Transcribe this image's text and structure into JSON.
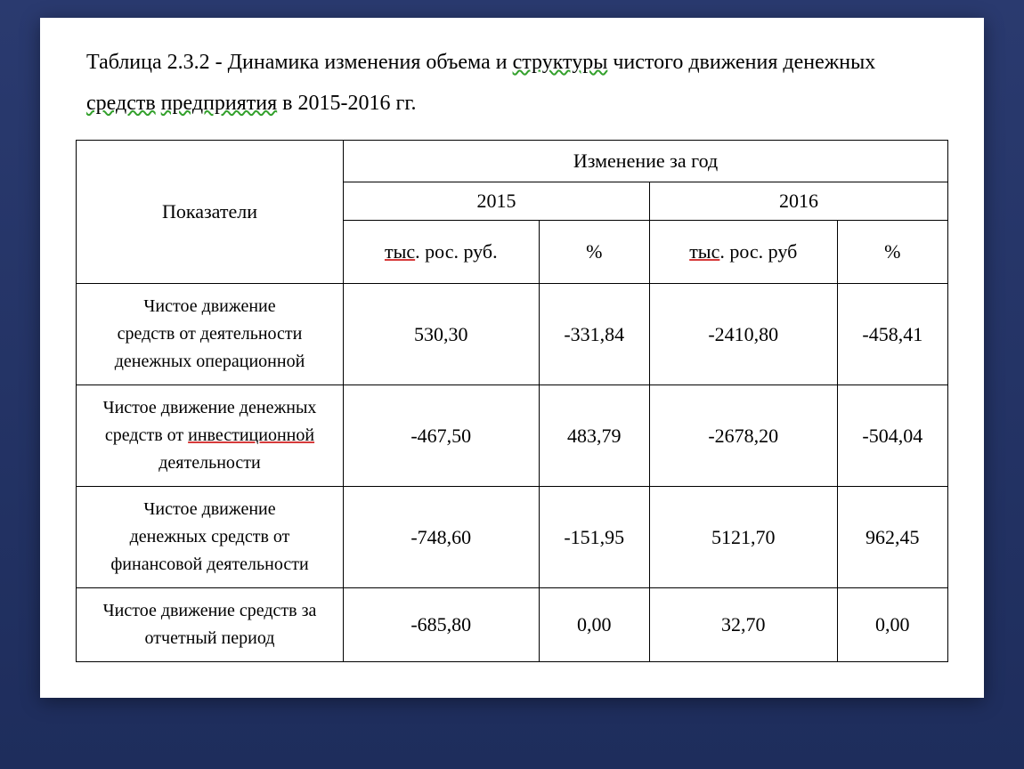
{
  "title": {
    "prefix": "Таблица 2.3.2 - Динамика изменения объема и ",
    "word_struct": "структуры",
    "mid": " чистого движения денежных",
    "word_sredstv": "средств",
    "word_predpr": "предприятия",
    "suffix": " в 2015-2016 гг."
  },
  "table": {
    "headers": {
      "indicators": "Показатели",
      "change_year": "Изменение за год",
      "y2015": "2015",
      "y2016": "2016",
      "unit_rub_2015_pre": "тыс",
      "unit_rub_2015_post": ". рос. руб.",
      "unit_pct": "%",
      "unit_rub_2016_pre": "тыс",
      "unit_rub_2016_post": ". рос. руб"
    },
    "rows": [
      {
        "label_l1": "Чистое движение",
        "label_l2": "средств от деятельности",
        "label_l3": "денежных операционной",
        "v2015_rub": "530,30",
        "v2015_pct": "-331,84",
        "v2016_rub": "-2410,80",
        "v2016_pct": "-458,41"
      },
      {
        "label_l1": "Чистое движение денежных",
        "label_l2_pre": "средств от ",
        "label_l2_uw": "инвестиционной",
        "label_l3": "деятельности",
        "v2015_rub": "-467,50",
        "v2015_pct": "483,79",
        "v2016_rub": "-2678,20",
        "v2016_pct": "-504,04"
      },
      {
        "label_l1": "Чистое движение",
        "label_l2": "денежных средств от",
        "label_l3": "финансовой деятельности",
        "v2015_rub": "-748,60",
        "v2015_pct": "-151,95",
        "v2016_rub": "5121,70",
        "v2016_pct": "962,45"
      },
      {
        "label_l1": "Чистое движение средств за",
        "label_l2": "отчетный период",
        "v2015_rub": "-685,80",
        "v2015_pct": "0,00",
        "v2016_rub": "32,70",
        "v2016_pct": "0,00"
      }
    ]
  },
  "styling": {
    "page_bg": "#ffffff",
    "body_gradient_top": "#2a3a6f",
    "body_gradient_bottom": "#1e2d5c",
    "border_color": "#000000",
    "text_color": "#000000",
    "wavy_color": "#33a02c",
    "red_underline": "#d63a3a",
    "title_fontsize_pt": 18,
    "cell_fontsize_pt": 15,
    "font_family": "Times New Roman"
  }
}
